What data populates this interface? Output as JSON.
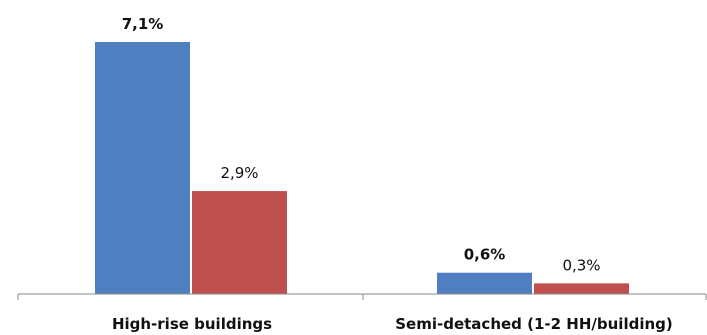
{
  "chart_data": {
    "type": "bar",
    "categories": [
      "High-rise buildings",
      "Semi-detached (1-2 HH/building)"
    ],
    "series": [
      {
        "color": "#4f7fc0",
        "values": [
          7.1,
          0.6
        ],
        "labels": [
          "7,1%",
          "0,6%"
        ],
        "label_weight": "bold"
      },
      {
        "color": "#c0504d",
        "values": [
          2.9,
          0.3
        ],
        "labels": [
          "2,9%",
          "0,3%"
        ],
        "label_weight": "normal"
      }
    ],
    "ylim": [
      0,
      7.1
    ],
    "grid": false,
    "legend": "none",
    "axis_color": "#888888"
  }
}
